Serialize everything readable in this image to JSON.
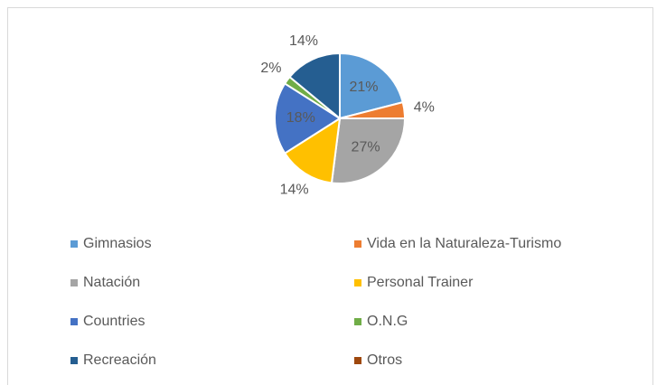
{
  "chart_data": {
    "type": "pie",
    "categories": [
      "Gimnasios",
      "Vida en la Naturaleza-Turismo",
      "Natación",
      "Personal Trainer",
      "Countries",
      "O.N.G",
      "Recreación",
      "Otros"
    ],
    "values": [
      21,
      4,
      27,
      14,
      18,
      2,
      14,
      0
    ],
    "value_labels": [
      "21%",
      "4%",
      "27%",
      "14%",
      "18%",
      "2%",
      "14%",
      null
    ],
    "colors": [
      "#5b9bd5",
      "#ed7d31",
      "#a5a5a5",
      "#ffc000",
      "#4472c4",
      "#70ad47",
      "#255e91",
      "#9e480e"
    ],
    "legend": "bottom"
  }
}
